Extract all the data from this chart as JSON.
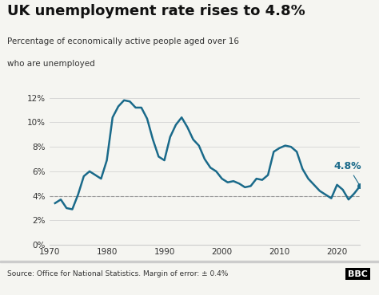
{
  "title": "UK unemployment rate rises to 4.8%",
  "subtitle1": "Percentage of economically active people aged over 16",
  "subtitle2": "who are unemployed",
  "source": "Source: Office for National Statistics. Margin of error: ± 0.4%",
  "annotation": "4.8%",
  "line_color": "#1a6a8a",
  "dashed_line_y": 4.0,
  "dashed_color": "#999999",
  "background_color": "#f5f5f1",
  "ylim": [
    0,
    13
  ],
  "xlim": [
    1970,
    2024
  ],
  "yticks": [
    0,
    2,
    4,
    6,
    8,
    10,
    12
  ],
  "xticks": [
    1970,
    1980,
    1990,
    2000,
    2010,
    2020
  ],
  "years": [
    1971,
    1972,
    1973,
    1974,
    1975,
    1976,
    1977,
    1978,
    1979,
    1980,
    1981,
    1982,
    1983,
    1984,
    1985,
    1986,
    1987,
    1988,
    1989,
    1990,
    1991,
    1992,
    1993,
    1994,
    1995,
    1996,
    1997,
    1998,
    1999,
    2000,
    2001,
    2002,
    2003,
    2004,
    2005,
    2006,
    2007,
    2008,
    2009,
    2010,
    2011,
    2012,
    2013,
    2014,
    2015,
    2016,
    2017,
    2018,
    2019,
    2020,
    2021,
    2022,
    2023,
    2024
  ],
  "values": [
    3.4,
    3.7,
    3.0,
    2.9,
    4.1,
    5.6,
    6.0,
    5.7,
    5.4,
    6.9,
    10.4,
    11.3,
    11.8,
    11.7,
    11.2,
    11.2,
    10.3,
    8.6,
    7.2,
    6.9,
    8.8,
    9.8,
    10.4,
    9.6,
    8.6,
    8.1,
    7.0,
    6.3,
    6.0,
    5.4,
    5.1,
    5.2,
    5.0,
    4.7,
    4.8,
    5.4,
    5.3,
    5.7,
    7.6,
    7.9,
    8.1,
    8.0,
    7.6,
    6.2,
    5.4,
    4.9,
    4.4,
    4.1,
    3.8,
    4.9,
    4.5,
    3.7,
    4.2,
    4.8
  ]
}
